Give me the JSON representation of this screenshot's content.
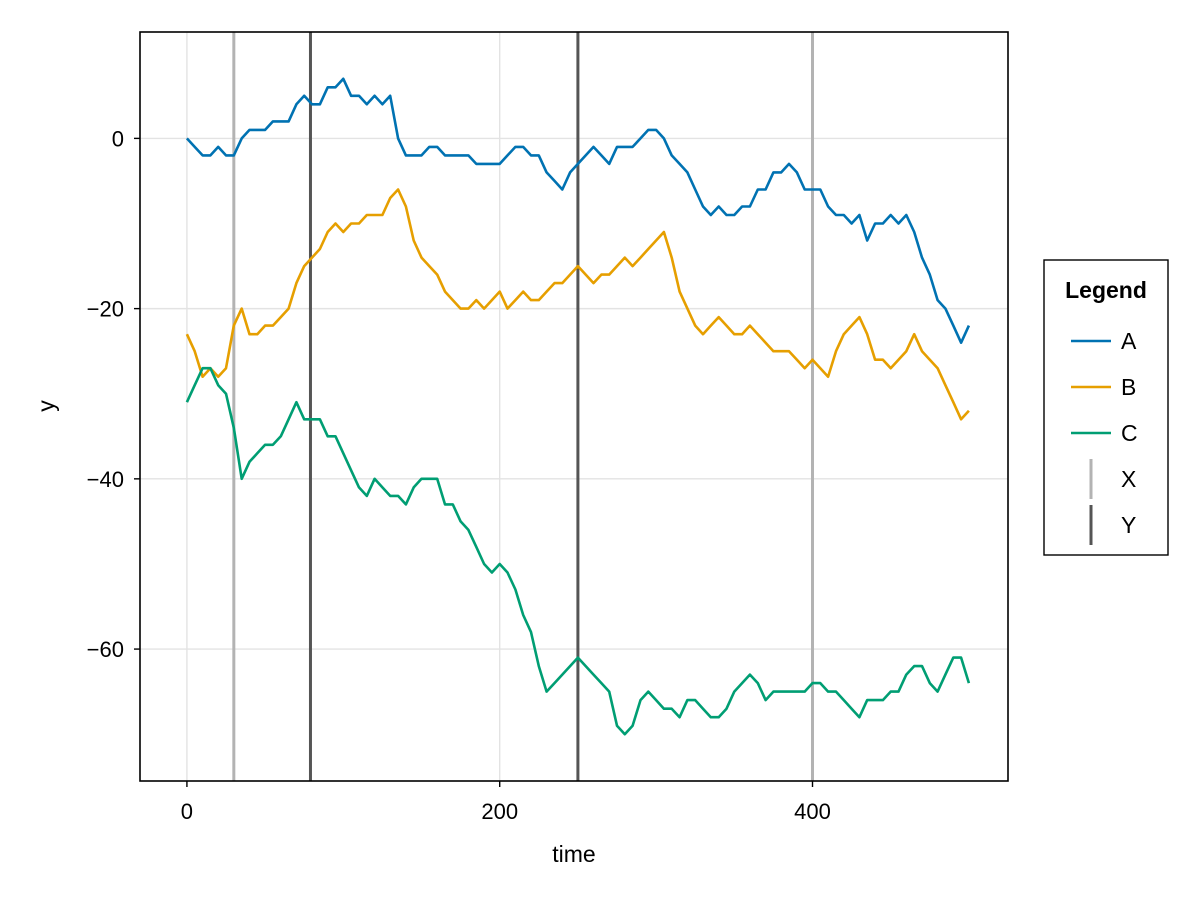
{
  "chart_data": {
    "type": "line",
    "title": "",
    "xlabel": "time",
    "ylabel": "y",
    "xlim": [
      -30,
      525
    ],
    "ylim": [
      -75.5,
      12.5
    ],
    "xticks": [
      0,
      200,
      400
    ],
    "yticks": [
      0,
      -20,
      -40,
      -60
    ],
    "ytick_labels": [
      "0",
      "−20",
      "−40",
      "−60"
    ],
    "xtick_labels": [
      "0",
      "200",
      "400"
    ],
    "grid": true,
    "legend": {
      "title": "Legend",
      "placement": "right"
    },
    "series": [
      {
        "name": "A",
        "color": "#0072B2",
        "x": [
          0,
          5,
          10,
          15,
          20,
          25,
          30,
          35,
          40,
          45,
          50,
          55,
          60,
          65,
          70,
          75,
          80,
          85,
          90,
          95,
          100,
          105,
          110,
          115,
          120,
          125,
          130,
          135,
          140,
          145,
          150,
          155,
          160,
          165,
          170,
          175,
          180,
          185,
          190,
          195,
          200,
          205,
          210,
          215,
          220,
          225,
          230,
          235,
          240,
          245,
          250,
          255,
          260,
          265,
          270,
          275,
          280,
          285,
          290,
          295,
          300,
          305,
          310,
          315,
          320,
          325,
          330,
          335,
          340,
          345,
          350,
          355,
          360,
          365,
          370,
          375,
          380,
          385,
          390,
          395,
          400,
          405,
          410,
          415,
          420,
          425,
          430,
          435,
          440,
          445,
          450,
          455,
          460,
          465,
          470,
          475,
          480,
          485,
          490,
          495,
          500
        ],
        "values": [
          0,
          -1,
          -2,
          -2,
          -1,
          -2,
          -2,
          0,
          1,
          1,
          1,
          2,
          2,
          2,
          4,
          5,
          4,
          4,
          6,
          6,
          7,
          5,
          5,
          4,
          5,
          4,
          5,
          0,
          -2,
          -2,
          -2,
          -1,
          -1,
          -2,
          -2,
          -2,
          -2,
          -3,
          -3,
          -3,
          -3,
          -2,
          -1,
          -1,
          -2,
          -2,
          -4,
          -5,
          -6,
          -4,
          -3,
          -2,
          -1,
          -2,
          -3,
          -1,
          -1,
          -1,
          0,
          1,
          1,
          0,
          -2,
          -3,
          -4,
          -6,
          -8,
          -9,
          -8,
          -9,
          -9,
          -8,
          -8,
          -6,
          -6,
          -4,
          -4,
          -3,
          -4,
          -6,
          -6,
          -6,
          -8,
          -9,
          -9,
          -10,
          -9,
          -12,
          -10,
          -10,
          -9,
          -10,
          -9,
          -11,
          -14,
          -16,
          -19,
          -20,
          -22,
          -24,
          -22
        ]
      },
      {
        "name": "B",
        "color": "#E69F00",
        "x": [
          0,
          5,
          10,
          15,
          20,
          25,
          30,
          35,
          40,
          45,
          50,
          55,
          60,
          65,
          70,
          75,
          80,
          85,
          90,
          95,
          100,
          105,
          110,
          115,
          120,
          125,
          130,
          135,
          140,
          145,
          150,
          155,
          160,
          165,
          170,
          175,
          180,
          185,
          190,
          195,
          200,
          205,
          210,
          215,
          220,
          225,
          230,
          235,
          240,
          245,
          250,
          255,
          260,
          265,
          270,
          275,
          280,
          285,
          290,
          295,
          300,
          305,
          310,
          315,
          320,
          325,
          330,
          335,
          340,
          345,
          350,
          355,
          360,
          365,
          370,
          375,
          380,
          385,
          390,
          395,
          400,
          405,
          410,
          415,
          420,
          425,
          430,
          435,
          440,
          445,
          450,
          455,
          460,
          465,
          470,
          475,
          480,
          485,
          490,
          495,
          500
        ],
        "values": [
          -23,
          -25,
          -28,
          -27,
          -28,
          -27,
          -22,
          -20,
          -23,
          -23,
          -22,
          -22,
          -21,
          -20,
          -17,
          -15,
          -14,
          -13,
          -11,
          -10,
          -11,
          -10,
          -10,
          -9,
          -9,
          -9,
          -7,
          -6,
          -8,
          -12,
          -14,
          -15,
          -16,
          -18,
          -19,
          -20,
          -20,
          -19,
          -20,
          -19,
          -18,
          -20,
          -19,
          -18,
          -19,
          -19,
          -18,
          -17,
          -17,
          -16,
          -15,
          -16,
          -17,
          -16,
          -16,
          -15,
          -14,
          -15,
          -14,
          -13,
          -12,
          -11,
          -14,
          -18,
          -20,
          -22,
          -23,
          -22,
          -21,
          -22,
          -23,
          -23,
          -22,
          -23,
          -24,
          -25,
          -25,
          -25,
          -26,
          -27,
          -26,
          -27,
          -28,
          -25,
          -23,
          -22,
          -21,
          -23,
          -26,
          -26,
          -27,
          -26,
          -25,
          -23,
          -25,
          -26,
          -27,
          -29,
          -31,
          -33,
          -32
        ]
      },
      {
        "name": "C",
        "color": "#009E73",
        "x": [
          0,
          5,
          10,
          15,
          20,
          25,
          30,
          35,
          40,
          45,
          50,
          55,
          60,
          65,
          70,
          75,
          80,
          85,
          90,
          95,
          100,
          105,
          110,
          115,
          120,
          125,
          130,
          135,
          140,
          145,
          150,
          155,
          160,
          165,
          170,
          175,
          180,
          185,
          190,
          195,
          200,
          205,
          210,
          215,
          220,
          225,
          230,
          235,
          240,
          245,
          250,
          255,
          260,
          265,
          270,
          275,
          280,
          285,
          290,
          295,
          300,
          305,
          310,
          315,
          320,
          325,
          330,
          335,
          340,
          345,
          350,
          355,
          360,
          365,
          370,
          375,
          380,
          385,
          390,
          395,
          400,
          405,
          410,
          415,
          420,
          425,
          430,
          435,
          440,
          445,
          450,
          455,
          460,
          465,
          470,
          475,
          480,
          485,
          490,
          495,
          500
        ],
        "values": [
          -31,
          -29,
          -27,
          -27,
          -29,
          -30,
          -34,
          -40,
          -38,
          -37,
          -36,
          -36,
          -35,
          -33,
          -31,
          -33,
          -33,
          -33,
          -35,
          -35,
          -37,
          -39,
          -41,
          -42,
          -40,
          -41,
          -42,
          -42,
          -43,
          -41,
          -40,
          -40,
          -40,
          -43,
          -43,
          -45,
          -46,
          -48,
          -50,
          -51,
          -50,
          -51,
          -53,
          -56,
          -58,
          -62,
          -65,
          -64,
          -63,
          -62,
          -61,
          -62,
          -63,
          -64,
          -65,
          -69,
          -70,
          -69,
          -66,
          -65,
          -66,
          -67,
          -67,
          -68,
          -66,
          -66,
          -67,
          -68,
          -68,
          -67,
          -65,
          -64,
          -63,
          -64,
          -66,
          -65,
          -65,
          -65,
          -65,
          -65,
          -64,
          -64,
          -65,
          -65,
          -66,
          -67,
          -68,
          -66,
          -66,
          -66,
          -65,
          -65,
          -63,
          -62,
          -62,
          -64,
          -65,
          -63,
          -61,
          -61,
          -64
        ]
      }
    ],
    "vlines": [
      {
        "group": "X",
        "x": 30,
        "color": "#b3b3b3"
      },
      {
        "group": "Y",
        "x": 79,
        "color": "#555555"
      },
      {
        "group": "Y",
        "x": 250,
        "color": "#555555"
      },
      {
        "group": "X",
        "x": 400,
        "color": "#b3b3b3"
      }
    ],
    "legend_entries": [
      {
        "label": "A",
        "kind": "line",
        "color": "#0072B2"
      },
      {
        "label": "B",
        "kind": "line",
        "color": "#E69F00"
      },
      {
        "label": "C",
        "kind": "line",
        "color": "#009E73"
      },
      {
        "label": "X",
        "kind": "vline",
        "color": "#b3b3b3"
      },
      {
        "label": "Y",
        "kind": "vline",
        "color": "#555555"
      }
    ]
  }
}
